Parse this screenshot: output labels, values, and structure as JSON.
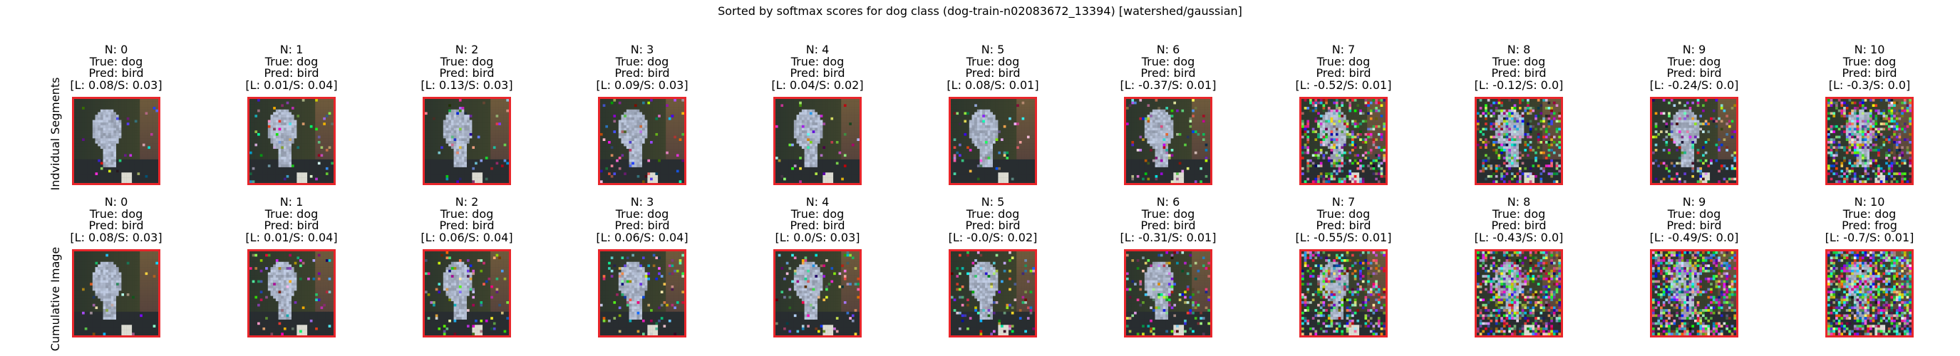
{
  "title": "Sorted by softmax scores for dog class (dog-train-n02083672_13394) [watershed/gaussian]",
  "rows": [
    {
      "label": "Indvidual Segments",
      "cells": [
        {
          "n": "N: 0",
          "true": "True: dog",
          "pred": "Pred: bird",
          "scores": "[L: 0.08/S: 0.03]"
        },
        {
          "n": "N: 1",
          "true": "True: dog",
          "pred": "Pred: bird",
          "scores": "[L: 0.01/S: 0.04]"
        },
        {
          "n": "N: 2",
          "true": "True: dog",
          "pred": "Pred: bird",
          "scores": "[L: 0.13/S: 0.03]"
        },
        {
          "n": "N: 3",
          "true": "True: dog",
          "pred": "Pred: bird",
          "scores": "[L: 0.09/S: 0.03]"
        },
        {
          "n": "N: 4",
          "true": "True: dog",
          "pred": "Pred: bird",
          "scores": "[L: 0.04/S: 0.02]"
        },
        {
          "n": "N: 5",
          "true": "True: dog",
          "pred": "Pred: bird",
          "scores": "[L: 0.08/S: 0.01]"
        },
        {
          "n": "N: 6",
          "true": "True: dog",
          "pred": "Pred: bird",
          "scores": "[L: -0.37/S: 0.01]"
        },
        {
          "n": "N: 7",
          "true": "True: dog",
          "pred": "Pred: bird",
          "scores": "[L: -0.52/S: 0.01]"
        },
        {
          "n": "N: 8",
          "true": "True: dog",
          "pred": "Pred: bird",
          "scores": "[L: -0.12/S: 0.0]"
        },
        {
          "n": "N: 9",
          "true": "True: dog",
          "pred": "Pred: bird",
          "scores": "[L: -0.24/S: 0.0]"
        },
        {
          "n": "N: 10",
          "true": "True: dog",
          "pred": "Pred: bird",
          "scores": "[L: -0.3/S: 0.0]"
        }
      ]
    },
    {
      "label": "Cumulative Image",
      "cells": [
        {
          "n": "N: 0",
          "true": "True: dog",
          "pred": "Pred: bird",
          "scores": "[L: 0.08/S: 0.03]"
        },
        {
          "n": "N: 1",
          "true": "True: dog",
          "pred": "Pred: bird",
          "scores": "[L: 0.01/S: 0.04]"
        },
        {
          "n": "N: 2",
          "true": "True: dog",
          "pred": "Pred: bird",
          "scores": "[L: 0.06/S: 0.04]"
        },
        {
          "n": "N: 3",
          "true": "True: dog",
          "pred": "Pred: bird",
          "scores": "[L: 0.06/S: 0.04]"
        },
        {
          "n": "N: 4",
          "true": "True: dog",
          "pred": "Pred: bird",
          "scores": "[L: 0.0/S: 0.03]"
        },
        {
          "n": "N: 5",
          "true": "True: dog",
          "pred": "Pred: bird",
          "scores": "[L: -0.0/S: 0.02]"
        },
        {
          "n": "N: 6",
          "true": "True: dog",
          "pred": "Pred: bird",
          "scores": "[L: -0.31/S: 0.01]"
        },
        {
          "n": "N: 7",
          "true": "True: dog",
          "pred": "Pred: bird",
          "scores": "[L: -0.55/S: 0.01]"
        },
        {
          "n": "N: 8",
          "true": "True: dog",
          "pred": "Pred: bird",
          "scores": "[L: -0.43/S: 0.0]"
        },
        {
          "n": "N: 9",
          "true": "True: dog",
          "pred": "Pred: bird",
          "scores": "[L: -0.49/S: 0.0]"
        },
        {
          "n": "N: 10",
          "true": "True: dog",
          "pred": "Pred: frog",
          "scores": "[L: -0.7/S: 0.01]"
        }
      ]
    }
  ],
  "colors": {
    "frame": "#e8262b",
    "background": "#2f3a30"
  }
}
